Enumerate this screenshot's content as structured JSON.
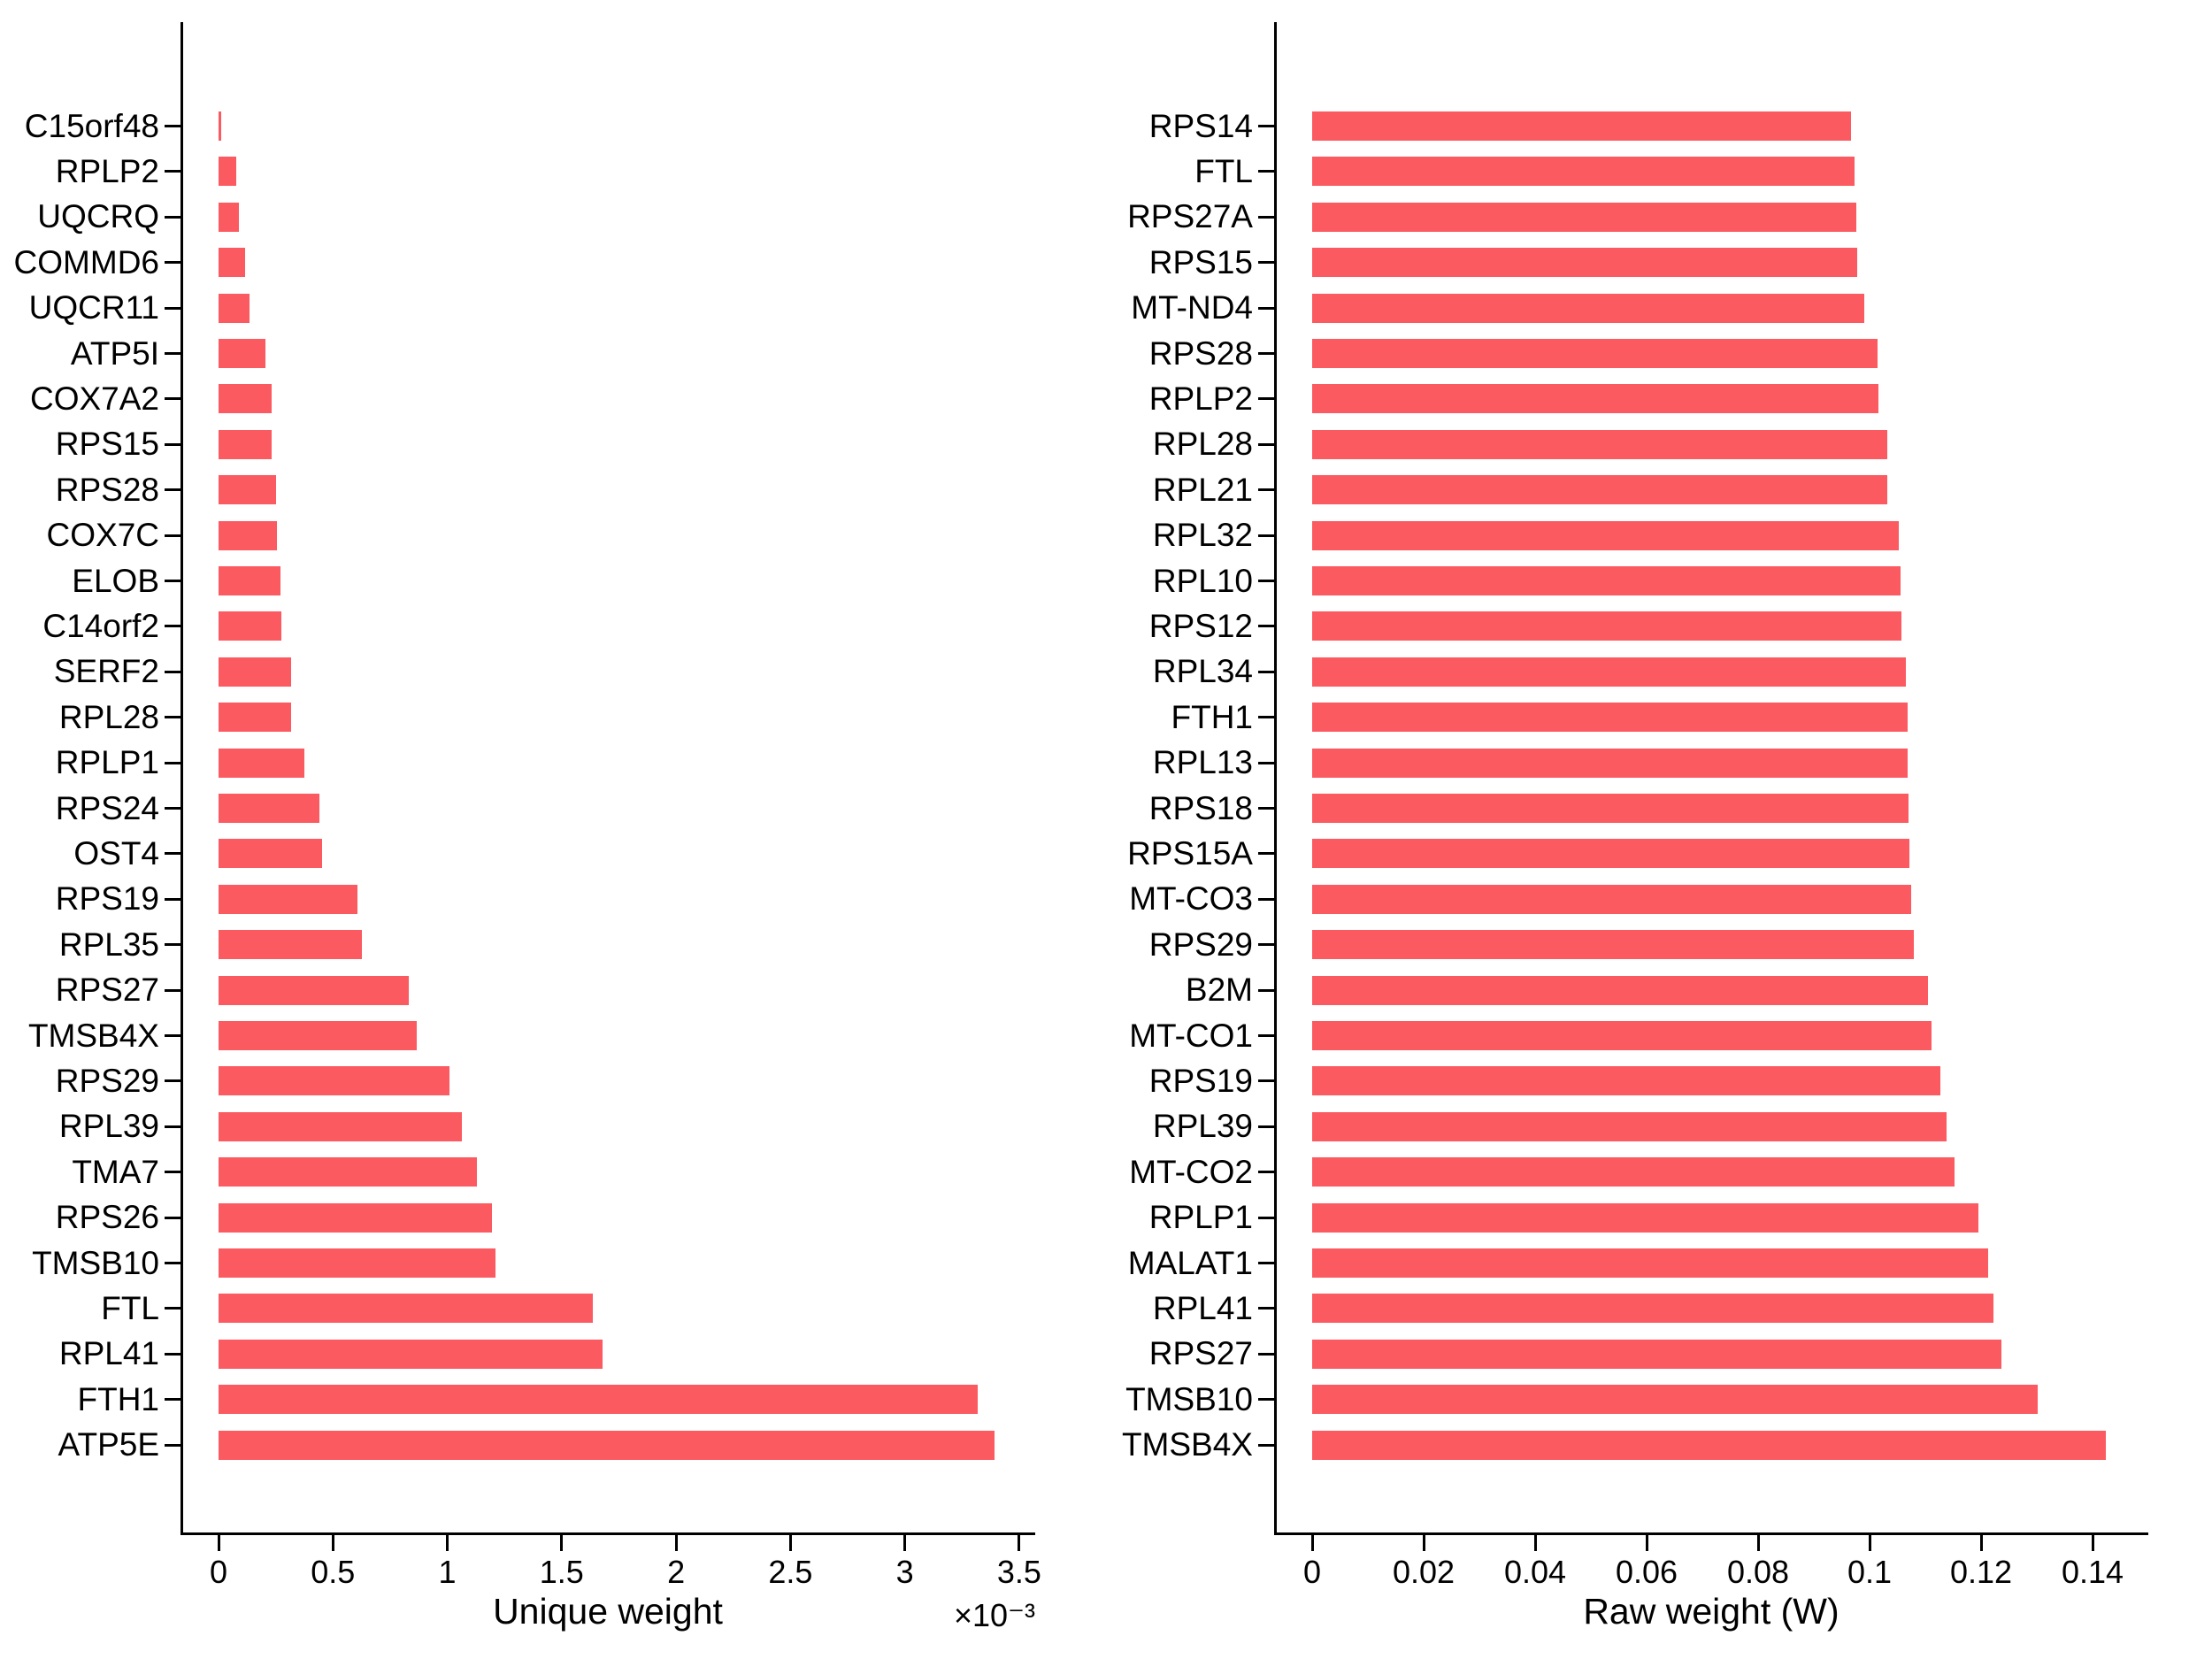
{
  "figure": {
    "background": "#ffffff"
  },
  "style": {
    "bar_color": "#FB5A61",
    "axis_color": "#000000",
    "text_color": "#000000"
  },
  "chart_data": [
    {
      "type": "bar",
      "orientation": "horizontal",
      "title": "",
      "xlabel": "Unique weight",
      "offset_label": "×10⁻³",
      "value_scale": "1e-3",
      "grid": false,
      "legend": null,
      "categories": [
        "C15orf48",
        "RPLP2",
        "UQCRQ",
        "COMMD6",
        "UQCR11",
        "ATP5I",
        "COX7A2",
        "RPS15",
        "RPS28",
        "COX7C",
        "ELOB",
        "C14orf2",
        "SERF2",
        "RPL28",
        "RPLP1",
        "RPS24",
        "OST4",
        "RPS19",
        "RPL35",
        "RPS27",
        "TMSB4X",
        "RPS29",
        "RPL39",
        "TMA7",
        "RPS26",
        "TMSB10",
        "FTL",
        "RPL41",
        "FTH1",
        "ATP5E"
      ],
      "values": [
        0.01,
        0.077,
        0.088,
        0.115,
        0.135,
        0.204,
        0.231,
        0.231,
        0.25,
        0.254,
        0.269,
        0.275,
        0.319,
        0.319,
        0.377,
        0.442,
        0.454,
        0.608,
        0.627,
        0.83,
        0.868,
        1.008,
        1.065,
        1.13,
        1.195,
        1.21,
        1.636,
        1.678,
        3.318,
        3.393
      ],
      "xlim": [
        0,
        3.57
      ],
      "xticks": [
        0,
        0.5,
        1,
        1.5,
        2,
        2.5,
        3,
        3.5
      ],
      "xtick_labels": [
        "0",
        "0.5",
        "1",
        "1.5",
        "2",
        "2.5",
        "3",
        "3.5"
      ]
    },
    {
      "type": "bar",
      "orientation": "horizontal",
      "title": "",
      "xlabel": "Raw weight (W)",
      "offset_label": "",
      "value_scale": "1",
      "grid": false,
      "legend": null,
      "categories": [
        "RPS14",
        "FTL",
        "RPS27A",
        "RPS15",
        "MT-ND4",
        "RPS28",
        "RPLP2",
        "RPL28",
        "RPL21",
        "RPL32",
        "RPL10",
        "RPS12",
        "RPL34",
        "FTH1",
        "RPL13",
        "RPS18",
        "RPS15A",
        "MT-CO3",
        "RPS29",
        "B2M",
        "MT-CO1",
        "RPS19",
        "RPL39",
        "MT-CO2",
        "RPLP1",
        "MALAT1",
        "RPL41",
        "RPS27",
        "TMSB10",
        "TMSB4X"
      ],
      "values": [
        0.0967,
        0.0973,
        0.0976,
        0.0977,
        0.0991,
        0.1015,
        0.1016,
        0.1031,
        0.1031,
        0.1052,
        0.1056,
        0.1057,
        0.1065,
        0.1068,
        0.1068,
        0.107,
        0.1071,
        0.1074,
        0.108,
        0.1104,
        0.1111,
        0.1127,
        0.1138,
        0.1152,
        0.1196,
        0.1213,
        0.1223,
        0.1236,
        0.1301,
        0.1424
      ],
      "xlim": [
        0,
        0.15
      ],
      "xticks": [
        0,
        0.02,
        0.04,
        0.06,
        0.08,
        0.1,
        0.12,
        0.14
      ],
      "xtick_labels": [
        "0",
        "0.02",
        "0.04",
        "0.06",
        "0.08",
        "0.1",
        "0.12",
        "0.14"
      ]
    }
  ]
}
